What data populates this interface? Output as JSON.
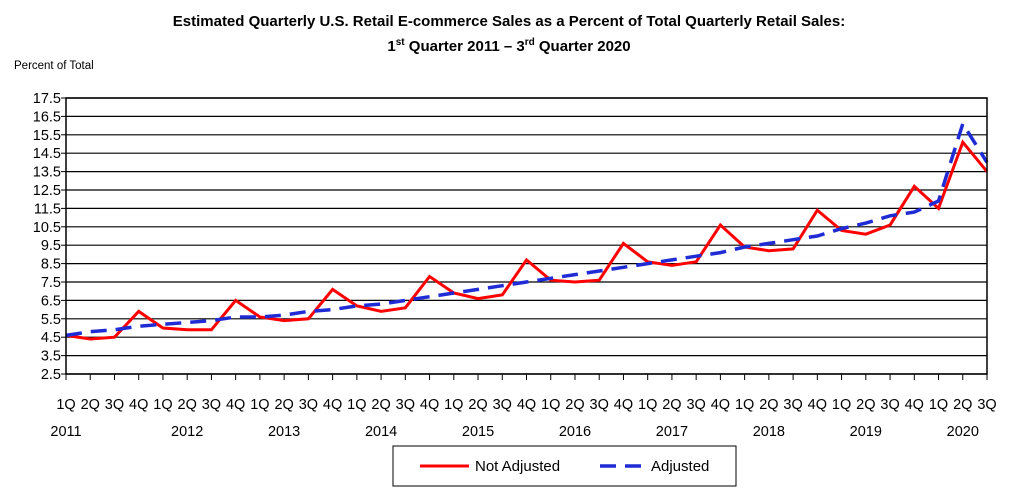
{
  "title_line1": "Estimated Quarterly U.S. Retail E-commerce Sales as a Percent of Total Quarterly Retail Sales:",
  "title_line2": {
    "part1": "1",
    "sup1": "st",
    "part2": " Quarter 2011 – 3",
    "sup2": "rd",
    "part3": " Quarter 2020"
  },
  "chart_data": {
    "type": "line",
    "ylabel": "Percent of Total",
    "ylim": [
      2.5,
      17.5
    ],
    "yticks": [
      2.5,
      3.5,
      4.5,
      5.5,
      6.5,
      7.5,
      8.5,
      9.5,
      10.5,
      11.5,
      12.5,
      13.5,
      14.5,
      15.5,
      16.5,
      17.5
    ],
    "grid": true,
    "legend_position": "bottom-center",
    "quarter_labels": [
      "1Q",
      "2Q",
      "3Q",
      "4Q",
      "1Q",
      "2Q",
      "3Q",
      "4Q",
      "1Q",
      "2Q",
      "3Q",
      "4Q",
      "1Q",
      "2Q",
      "3Q",
      "4Q",
      "1Q",
      "2Q",
      "3Q",
      "4Q",
      "1Q",
      "2Q",
      "3Q",
      "4Q",
      "1Q",
      "2Q",
      "3Q",
      "4Q",
      "1Q",
      "2Q",
      "3Q",
      "4Q",
      "1Q",
      "2Q",
      "3Q",
      "4Q",
      "1Q",
      "2Q",
      "3Q"
    ],
    "year_labels": [
      {
        "label": "2011",
        "q_index": 0
      },
      {
        "label": "2012",
        "q_index": 5
      },
      {
        "label": "2013",
        "q_index": 9
      },
      {
        "label": "2014",
        "q_index": 13
      },
      {
        "label": "2015",
        "q_index": 17
      },
      {
        "label": "2016",
        "q_index": 21
      },
      {
        "label": "2017",
        "q_index": 25
      },
      {
        "label": "2018",
        "q_index": 29
      },
      {
        "label": "2019",
        "q_index": 33
      },
      {
        "label": "2020",
        "q_index": 37
      }
    ],
    "series": [
      {
        "name": "Not Adjusted",
        "color": "#ff0000",
        "dash": false,
        "values": [
          4.6,
          4.4,
          4.5,
          5.9,
          5.0,
          4.9,
          4.9,
          6.5,
          5.6,
          5.4,
          5.5,
          7.1,
          6.2,
          5.9,
          6.1,
          7.8,
          6.9,
          6.6,
          6.8,
          8.7,
          7.6,
          7.5,
          7.6,
          9.6,
          8.6,
          8.4,
          8.6,
          10.6,
          9.4,
          9.2,
          9.3,
          11.4,
          10.3,
          10.1,
          10.6,
          12.7,
          11.5,
          15.1,
          13.5
        ]
      },
      {
        "name": "Adjusted",
        "color": "#1f2bd4",
        "dash": true,
        "values": [
          4.6,
          4.8,
          4.9,
          5.1,
          5.2,
          5.3,
          5.4,
          5.6,
          5.6,
          5.7,
          5.9,
          6.0,
          6.2,
          6.3,
          6.5,
          6.7,
          6.9,
          7.1,
          7.3,
          7.5,
          7.7,
          7.9,
          8.1,
          8.3,
          8.5,
          8.7,
          8.9,
          9.1,
          9.4,
          9.6,
          9.8,
          10.0,
          10.4,
          10.7,
          11.1,
          11.3,
          11.9,
          16.1,
          14.0
        ]
      }
    ]
  }
}
